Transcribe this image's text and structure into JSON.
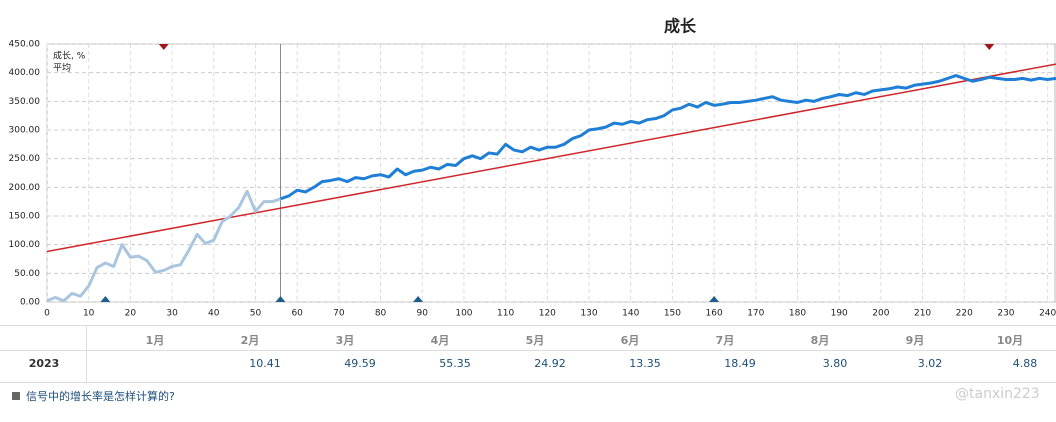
{
  "chart_data": {
    "type": "line",
    "title": "成长",
    "xlim": [
      0,
      242
    ],
    "xticks": [
      0,
      10,
      20,
      30,
      40,
      50,
      60,
      70,
      80,
      90,
      100,
      110,
      120,
      130,
      140,
      150,
      160,
      170,
      180,
      190,
      200,
      210,
      220,
      230,
      240
    ],
    "ylim": [
      0,
      450
    ],
    "yticks": [
      {
        "value": 0,
        "label": "0.00"
      },
      {
        "value": 50,
        "label": "50.00"
      },
      {
        "value": 100,
        "label": "100.00"
      },
      {
        "value": 150,
        "label": "150.00"
      },
      {
        "value": 200,
        "label": "200.00"
      },
      {
        "value": 250,
        "label": "250.00"
      },
      {
        "value": 300,
        "label": "300.00"
      },
      {
        "value": 350,
        "label": "350.00"
      },
      {
        "value": 400,
        "label": "400.00"
      },
      {
        "value": 450,
        "label": "450.00"
      }
    ],
    "grid": true,
    "legend": "top-left",
    "cursor_x": 56,
    "faded_until": 56,
    "faded_color": "#a9c6de",
    "top_markers": [
      28,
      226
    ],
    "top_marker_color": "#a0161c",
    "bottom_markers": [
      14,
      56,
      89,
      160
    ],
    "bottom_marker_color": "#1d5f8a",
    "series": [
      {
        "name": "成长, %",
        "color": "#1f7fd6",
        "x": [
          0,
          2,
          4,
          6,
          8,
          10,
          12,
          14,
          16,
          18,
          20,
          22,
          24,
          26,
          28,
          30,
          32,
          34,
          36,
          38,
          40,
          42,
          44,
          46,
          48,
          50,
          52,
          54,
          56,
          58,
          60,
          62,
          64,
          66,
          68,
          70,
          72,
          74,
          76,
          78,
          80,
          82,
          84,
          86,
          88,
          90,
          92,
          94,
          96,
          98,
          100,
          102,
          104,
          106,
          108,
          110,
          112,
          114,
          116,
          118,
          120,
          122,
          124,
          126,
          128,
          130,
          132,
          134,
          136,
          138,
          140,
          142,
          144,
          146,
          148,
          150,
          152,
          154,
          156,
          158,
          160,
          162,
          164,
          166,
          168,
          170,
          172,
          174,
          176,
          178,
          180,
          182,
          184,
          186,
          188,
          190,
          192,
          194,
          196,
          198,
          200,
          202,
          204,
          206,
          208,
          210,
          212,
          214,
          216,
          218,
          220,
          222,
          224,
          226,
          228,
          230,
          232,
          234,
          236,
          238,
          240,
          242
        ],
        "values": [
          2,
          8,
          2,
          15,
          10,
          28,
          60,
          68,
          62,
          100,
          78,
          80,
          72,
          52,
          55,
          62,
          65,
          90,
          118,
          102,
          108,
          140,
          150,
          165,
          193,
          158,
          175,
          175,
          180,
          185,
          195,
          192,
          200,
          210,
          212,
          215,
          210,
          217,
          215,
          220,
          222,
          218,
          232,
          222,
          228,
          230,
          235,
          232,
          240,
          238,
          250,
          255,
          250,
          260,
          258,
          275,
          265,
          262,
          270,
          265,
          270,
          270,
          275,
          285,
          290,
          300,
          302,
          305,
          312,
          310,
          315,
          312,
          318,
          320,
          325,
          335,
          338,
          345,
          340,
          348,
          343,
          345,
          348,
          348,
          350,
          352,
          355,
          358,
          352,
          350,
          348,
          352,
          350,
          355,
          358,
          362,
          360,
          365,
          362,
          368,
          370,
          372,
          375,
          373,
          378,
          380,
          382,
          385,
          390,
          395,
          390,
          385,
          388,
          392,
          390,
          388,
          388,
          390,
          387,
          390,
          388,
          390
        ]
      },
      {
        "name": "平均",
        "color": "#d0252b",
        "x": [
          0,
          242
        ],
        "values": [
          88,
          415
        ]
      }
    ]
  },
  "table": {
    "columns": [
      "1月",
      "2月",
      "3月",
      "4月",
      "5月",
      "6月",
      "7月",
      "8月",
      "9月",
      "10月"
    ],
    "rows": [
      {
        "year": "2023",
        "values": [
          null,
          "10.41",
          "49.59",
          "55.35",
          "24.92",
          "13.35",
          "18.49",
          "3.80",
          "3.02",
          "4.88"
        ]
      }
    ]
  },
  "footer": {
    "link": "信号中的增长率是怎样计算的?",
    "watermark": "@tanxin223"
  }
}
